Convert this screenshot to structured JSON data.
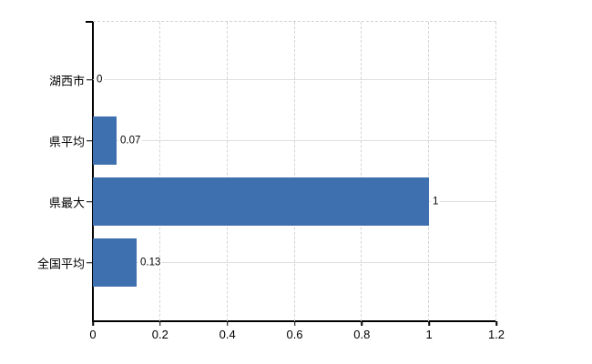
{
  "chart_data": {
    "type": "bar",
    "orientation": "horizontal",
    "title": "",
    "xlabel": "",
    "ylabel": "",
    "categories": [
      "湖西市",
      "県平均",
      "県最大",
      "全国平均"
    ],
    "values": [
      0,
      0.07,
      1,
      0.13
    ],
    "value_labels": [
      "0",
      "0.07",
      "1",
      "0.13"
    ],
    "xlim": [
      0,
      1.2
    ],
    "x_ticks": [
      0,
      0.2,
      0.4,
      0.6,
      0.8,
      1,
      1.2
    ],
    "x_tick_labels": [
      "0",
      "0.2",
      "0.4",
      "0.6",
      "0.8",
      "1",
      "1.2"
    ],
    "grid": "on",
    "legend": "none",
    "colors": {
      "bar": "#3e6fae",
      "horizontal_gridline": "#dce1dc",
      "vertical_gridline": "#d4d4d4",
      "axis": "#000000",
      "text": "#000000",
      "background": "#ffffff"
    }
  }
}
